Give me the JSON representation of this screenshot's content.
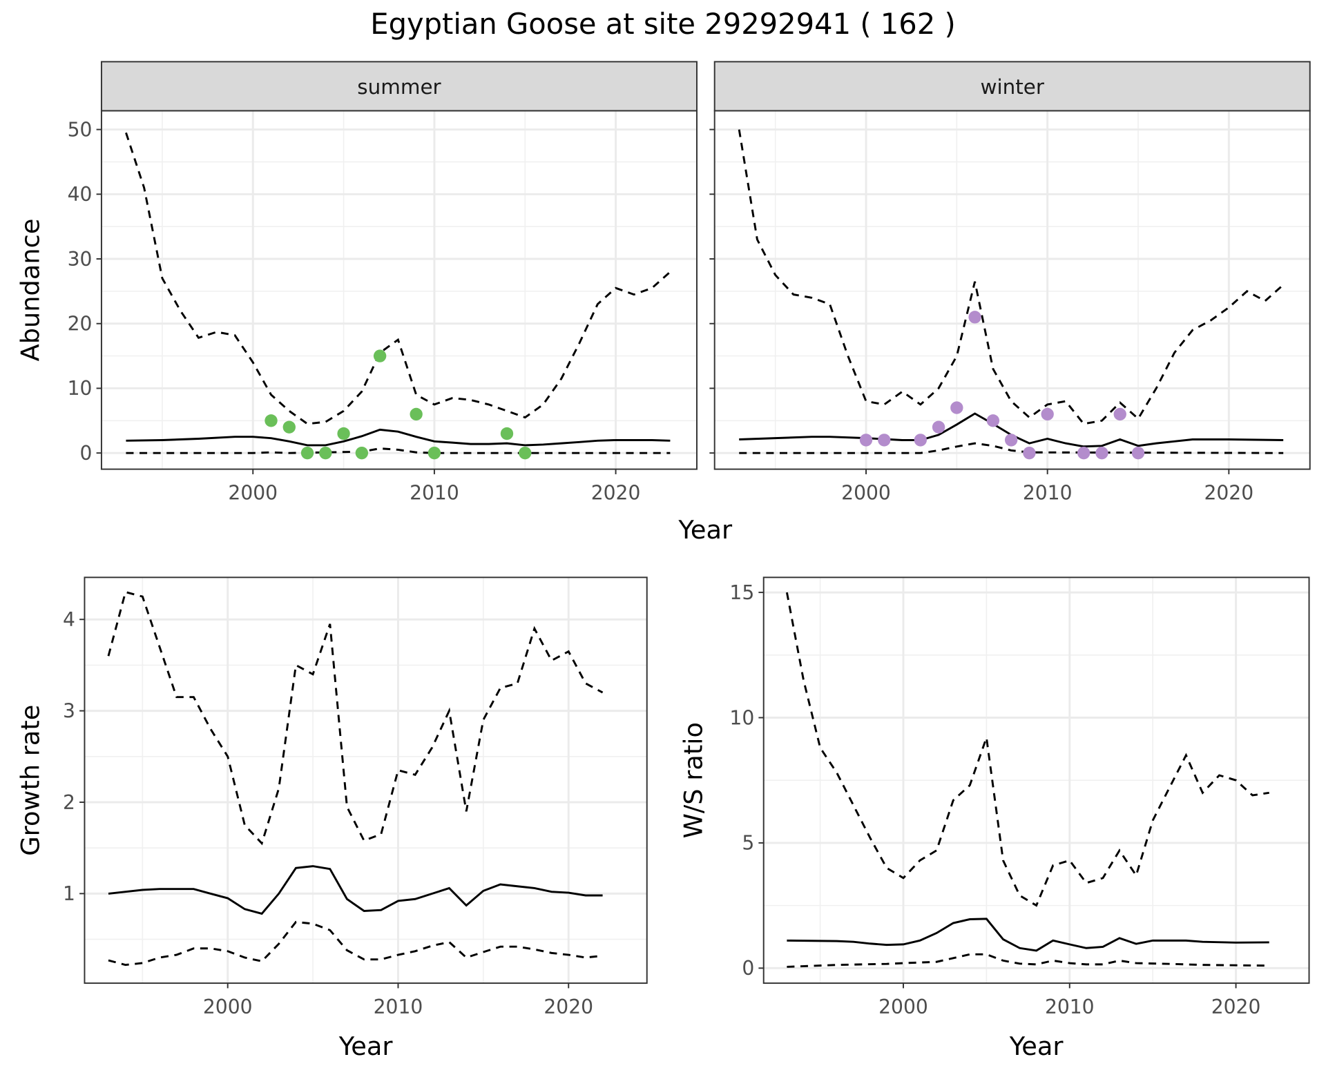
{
  "title": "Egyptian Goose at site 29292941 ( 162 )",
  "colors": {
    "summer_points": "#6abf59",
    "winter_points": "#b38ccc",
    "line": "#000000",
    "strip": "#d9d9d9"
  },
  "chart_data": [
    {
      "type": "line",
      "id": "summer",
      "strip": "summer",
      "ylabel": "Abundance",
      "xlabel": "Year",
      "xlim": [
        1991.65,
        2024.47
      ],
      "ylim": [
        -2.5,
        52.9
      ],
      "xticks": [
        2000,
        2010,
        2020
      ],
      "yticks": [
        0,
        10,
        20,
        30,
        40,
        50
      ],
      "show_ytick_labels": true,
      "upper": [
        [
          1993,
          49.5
        ],
        [
          1994,
          41
        ],
        [
          1995,
          27
        ],
        [
          1996,
          22
        ],
        [
          1997,
          17.8
        ],
        [
          1998,
          18.7
        ],
        [
          1999,
          18.2
        ],
        [
          2000,
          14
        ],
        [
          2001,
          9
        ],
        [
          2002,
          6.5
        ],
        [
          2003,
          4.5
        ],
        [
          2004,
          4.8
        ],
        [
          2005,
          6.5
        ],
        [
          2006,
          9.5
        ],
        [
          2007,
          15.5
        ],
        [
          2008,
          17.5
        ],
        [
          2009,
          9
        ],
        [
          2010,
          7.5
        ],
        [
          2011,
          8.5
        ],
        [
          2012,
          8.2
        ],
        [
          2013,
          7.5
        ],
        [
          2014,
          6.5
        ],
        [
          2015,
          5.5
        ],
        [
          2016,
          7.5
        ],
        [
          2017,
          11.5
        ],
        [
          2018,
          17
        ],
        [
          2019,
          23
        ],
        [
          2020,
          25.5
        ],
        [
          2021,
          24.5
        ],
        [
          2022,
          25.5
        ],
        [
          2023,
          28
        ]
      ],
      "mean": [
        [
          1993,
          1.9
        ],
        [
          1995,
          2.0
        ],
        [
          1997,
          2.2
        ],
        [
          1999,
          2.5
        ],
        [
          2000,
          2.5
        ],
        [
          2001,
          2.3
        ],
        [
          2002,
          1.8
        ],
        [
          2003,
          1.2
        ],
        [
          2004,
          1.2
        ],
        [
          2005,
          1.8
        ],
        [
          2006,
          2.6
        ],
        [
          2007,
          3.6
        ],
        [
          2008,
          3.3
        ],
        [
          2009,
          2.5
        ],
        [
          2010,
          1.8
        ],
        [
          2011,
          1.6
        ],
        [
          2012,
          1.4
        ],
        [
          2013,
          1.4
        ],
        [
          2014,
          1.5
        ],
        [
          2015,
          1.2
        ],
        [
          2016,
          1.3
        ],
        [
          2017,
          1.5
        ],
        [
          2018,
          1.7
        ],
        [
          2019,
          1.9
        ],
        [
          2020,
          2.0
        ],
        [
          2022,
          2.0
        ],
        [
          2023,
          1.9
        ]
      ],
      "lower": [
        [
          1993,
          0
        ],
        [
          2000,
          0
        ],
        [
          2001,
          0.1
        ],
        [
          2002,
          0
        ],
        [
          2006,
          0.2
        ],
        [
          2007,
          0.7
        ],
        [
          2008,
          0.5
        ],
        [
          2009,
          0.1
        ],
        [
          2010,
          0
        ],
        [
          2023,
          0
        ]
      ],
      "points": [
        [
          2001,
          5
        ],
        [
          2002,
          4
        ],
        [
          2003,
          0
        ],
        [
          2004,
          0
        ],
        [
          2005,
          3
        ],
        [
          2006,
          0
        ],
        [
          2007,
          15
        ],
        [
          2009,
          6
        ],
        [
          2010,
          0
        ],
        [
          2014,
          3
        ],
        [
          2015,
          0
        ]
      ]
    },
    {
      "type": "line",
      "id": "winter",
      "strip": "winter",
      "ylabel": "",
      "xlabel": "Year",
      "xlim": [
        1991.65,
        2024.47
      ],
      "ylim": [
        -2.5,
        52.9
      ],
      "xticks": [
        2000,
        2010,
        2020
      ],
      "yticks": [
        0,
        10,
        20,
        30,
        40,
        50
      ],
      "show_ytick_labels": false,
      "upper": [
        [
          1993,
          50
        ],
        [
          1994,
          33
        ],
        [
          1995,
          27.5
        ],
        [
          1996,
          24.5
        ],
        [
          1997,
          24
        ],
        [
          1998,
          23
        ],
        [
          1999,
          15
        ],
        [
          2000,
          8
        ],
        [
          2001,
          7.5
        ],
        [
          2002,
          9.5
        ],
        [
          2003,
          7.5
        ],
        [
          2004,
          10
        ],
        [
          2005,
          15
        ],
        [
          2006,
          26.5
        ],
        [
          2007,
          13
        ],
        [
          2008,
          8
        ],
        [
          2009,
          5.5
        ],
        [
          2010,
          7.5
        ],
        [
          2011,
          8
        ],
        [
          2012,
          4.5
        ],
        [
          2013,
          5
        ],
        [
          2014,
          7.8
        ],
        [
          2015,
          5.3
        ],
        [
          2016,
          10
        ],
        [
          2017,
          15.5
        ],
        [
          2018,
          19
        ],
        [
          2019,
          20.5
        ],
        [
          2020,
          22.5
        ],
        [
          2021,
          25
        ],
        [
          2022,
          23.5
        ],
        [
          2023,
          26
        ]
      ],
      "mean": [
        [
          1993,
          2.1
        ],
        [
          1995,
          2.3
        ],
        [
          1997,
          2.5
        ],
        [
          1998,
          2.5
        ],
        [
          2000,
          2.3
        ],
        [
          2002,
          2.0
        ],
        [
          2003,
          2.0
        ],
        [
          2004,
          2.8
        ],
        [
          2005,
          4.4
        ],
        [
          2006,
          6.1
        ],
        [
          2007,
          4.5
        ],
        [
          2008,
          2.8
        ],
        [
          2009,
          1.5
        ],
        [
          2010,
          2.2
        ],
        [
          2011,
          1.5
        ],
        [
          2012,
          1.0
        ],
        [
          2013,
          1.1
        ],
        [
          2014,
          2.1
        ],
        [
          2015,
          1.1
        ],
        [
          2016,
          1.5
        ],
        [
          2017,
          1.8
        ],
        [
          2018,
          2.1
        ],
        [
          2020,
          2.1
        ],
        [
          2023,
          2.0
        ]
      ],
      "lower": [
        [
          1993,
          0
        ],
        [
          2003,
          0
        ],
        [
          2004,
          0.4
        ],
        [
          2005,
          1.0
        ],
        [
          2006,
          1.5
        ],
        [
          2007,
          1.1
        ],
        [
          2008,
          0.4
        ],
        [
          2009,
          0.1
        ],
        [
          2023,
          0
        ]
      ],
      "points": [
        [
          2000,
          2
        ],
        [
          2001,
          2
        ],
        [
          2003,
          2
        ],
        [
          2004,
          4
        ],
        [
          2005,
          7
        ],
        [
          2006,
          21
        ],
        [
          2007,
          5
        ],
        [
          2008,
          2
        ],
        [
          2009,
          0
        ],
        [
          2010,
          6
        ],
        [
          2012,
          0
        ],
        [
          2013,
          0
        ],
        [
          2014,
          6
        ],
        [
          2015,
          0
        ]
      ]
    },
    {
      "type": "line",
      "id": "growth",
      "ylabel": "Growth rate",
      "xlabel": "Year",
      "xlim": [
        1991.6,
        2024.6
      ],
      "ylim": [
        0.02,
        4.46
      ],
      "xticks": [
        2000,
        2010,
        2020
      ],
      "yticks": [
        1,
        2,
        3,
        4
      ],
      "show_ytick_labels": true,
      "upper": [
        [
          1993,
          3.6
        ],
        [
          1994,
          4.3
        ],
        [
          1995,
          4.25
        ],
        [
          1996,
          3.7
        ],
        [
          1997,
          3.15
        ],
        [
          1998,
          3.15
        ],
        [
          1999,
          2.8
        ],
        [
          2000,
          2.5
        ],
        [
          2001,
          1.75
        ],
        [
          2002,
          1.55
        ],
        [
          2003,
          2.15
        ],
        [
          2004,
          3.5
        ],
        [
          2005,
          3.4
        ],
        [
          2006,
          3.95
        ],
        [
          2007,
          1.95
        ],
        [
          2008,
          1.58
        ],
        [
          2009,
          1.65
        ],
        [
          2010,
          2.35
        ],
        [
          2011,
          2.3
        ],
        [
          2012,
          2.6
        ],
        [
          2013,
          3.0
        ],
        [
          2014,
          1.9
        ],
        [
          2015,
          2.9
        ],
        [
          2016,
          3.25
        ],
        [
          2017,
          3.3
        ],
        [
          2018,
          3.9
        ],
        [
          2019,
          3.55
        ],
        [
          2020,
          3.65
        ],
        [
          2021,
          3.3
        ],
        [
          2022,
          3.2
        ]
      ],
      "mean": [
        [
          1993,
          1.0
        ],
        [
          1994,
          1.02
        ],
        [
          1995,
          1.04
        ],
        [
          1996,
          1.05
        ],
        [
          1997,
          1.05
        ],
        [
          1998,
          1.05
        ],
        [
          1999,
          1.0
        ],
        [
          2000,
          0.95
        ],
        [
          2001,
          0.83
        ],
        [
          2002,
          0.78
        ],
        [
          2003,
          1.0
        ],
        [
          2004,
          1.28
        ],
        [
          2005,
          1.3
        ],
        [
          2006,
          1.27
        ],
        [
          2007,
          0.94
        ],
        [
          2008,
          0.81
        ],
        [
          2009,
          0.82
        ],
        [
          2010,
          0.92
        ],
        [
          2011,
          0.94
        ],
        [
          2012,
          1.0
        ],
        [
          2013,
          1.06
        ],
        [
          2014,
          0.87
        ],
        [
          2015,
          1.03
        ],
        [
          2016,
          1.1
        ],
        [
          2017,
          1.08
        ],
        [
          2018,
          1.06
        ],
        [
          2019,
          1.02
        ],
        [
          2020,
          1.01
        ],
        [
          2021,
          0.98
        ],
        [
          2022,
          0.98
        ]
      ],
      "lower": [
        [
          1993,
          0.27
        ],
        [
          1994,
          0.22
        ],
        [
          1995,
          0.24
        ],
        [
          1996,
          0.3
        ],
        [
          1997,
          0.33
        ],
        [
          1998,
          0.4
        ],
        [
          1999,
          0.4
        ],
        [
          2000,
          0.37
        ],
        [
          2001,
          0.3
        ],
        [
          2002,
          0.26
        ],
        [
          2003,
          0.45
        ],
        [
          2004,
          0.69
        ],
        [
          2005,
          0.67
        ],
        [
          2006,
          0.6
        ],
        [
          2007,
          0.38
        ],
        [
          2008,
          0.28
        ],
        [
          2009,
          0.28
        ],
        [
          2010,
          0.33
        ],
        [
          2011,
          0.37
        ],
        [
          2012,
          0.43
        ],
        [
          2013,
          0.47
        ],
        [
          2014,
          0.3
        ],
        [
          2015,
          0.36
        ],
        [
          2016,
          0.42
        ],
        [
          2017,
          0.42
        ],
        [
          2018,
          0.39
        ],
        [
          2019,
          0.35
        ],
        [
          2020,
          0.33
        ],
        [
          2021,
          0.3
        ],
        [
          2022,
          0.32
        ]
      ],
      "points": []
    },
    {
      "type": "line",
      "id": "ws",
      "ylabel": "W/S ratio",
      "xlabel": "Year",
      "xlim": [
        1991.6,
        2024.4
      ],
      "ylim": [
        -0.6,
        15.6
      ],
      "xticks": [
        2000,
        2010,
        2020
      ],
      "yticks": [
        0,
        5,
        10,
        15
      ],
      "show_ytick_labels": true,
      "upper": [
        [
          1993,
          15
        ],
        [
          1994,
          11.5
        ],
        [
          1995,
          8.8
        ],
        [
          1996,
          7.8
        ],
        [
          1997,
          6.5
        ],
        [
          1998,
          5.2
        ],
        [
          1999,
          4
        ],
        [
          2000,
          3.6
        ],
        [
          2001,
          4.3
        ],
        [
          2002,
          4.7
        ],
        [
          2003,
          6.7
        ],
        [
          2004,
          7.3
        ],
        [
          2005,
          9.2
        ],
        [
          2006,
          4.3
        ],
        [
          2007,
          2.9
        ],
        [
          2008,
          2.5
        ],
        [
          2009,
          4.1
        ],
        [
          2010,
          4.3
        ],
        [
          2011,
          3.4
        ],
        [
          2012,
          3.6
        ],
        [
          2013,
          4.7
        ],
        [
          2014,
          3.7
        ],
        [
          2015,
          5.9
        ],
        [
          2016,
          7.2
        ],
        [
          2017,
          8.5
        ],
        [
          2018,
          7
        ],
        [
          2019,
          7.7
        ],
        [
          2020,
          7.5
        ],
        [
          2021,
          6.9
        ],
        [
          2022,
          7
        ]
      ],
      "mean": [
        [
          1993,
          1.1
        ],
        [
          1996,
          1.08
        ],
        [
          1997,
          1.05
        ],
        [
          1998,
          0.98
        ],
        [
          1999,
          0.93
        ],
        [
          2000,
          0.95
        ],
        [
          2001,
          1.1
        ],
        [
          2002,
          1.4
        ],
        [
          2003,
          1.8
        ],
        [
          2004,
          1.95
        ],
        [
          2005,
          1.97
        ],
        [
          2006,
          1.15
        ],
        [
          2007,
          0.8
        ],
        [
          2008,
          0.7
        ],
        [
          2009,
          1.1
        ],
        [
          2010,
          0.95
        ],
        [
          2011,
          0.8
        ],
        [
          2012,
          0.85
        ],
        [
          2013,
          1.2
        ],
        [
          2014,
          0.97
        ],
        [
          2015,
          1.1
        ],
        [
          2017,
          1.1
        ],
        [
          2018,
          1.05
        ],
        [
          2020,
          1.02
        ],
        [
          2022,
          1.03
        ]
      ],
      "lower": [
        [
          1993,
          0.05
        ],
        [
          1996,
          0.13
        ],
        [
          1999,
          0.17
        ],
        [
          2000,
          0.2
        ],
        [
          2002,
          0.25
        ],
        [
          2003,
          0.4
        ],
        [
          2004,
          0.55
        ],
        [
          2005,
          0.55
        ],
        [
          2006,
          0.3
        ],
        [
          2007,
          0.18
        ],
        [
          2008,
          0.15
        ],
        [
          2009,
          0.3
        ],
        [
          2010,
          0.2
        ],
        [
          2011,
          0.15
        ],
        [
          2012,
          0.15
        ],
        [
          2013,
          0.3
        ],
        [
          2014,
          0.2
        ],
        [
          2016,
          0.17
        ],
        [
          2018,
          0.13
        ],
        [
          2022,
          0.1
        ]
      ],
      "points": []
    }
  ],
  "shared_xlabel_top": "Year"
}
